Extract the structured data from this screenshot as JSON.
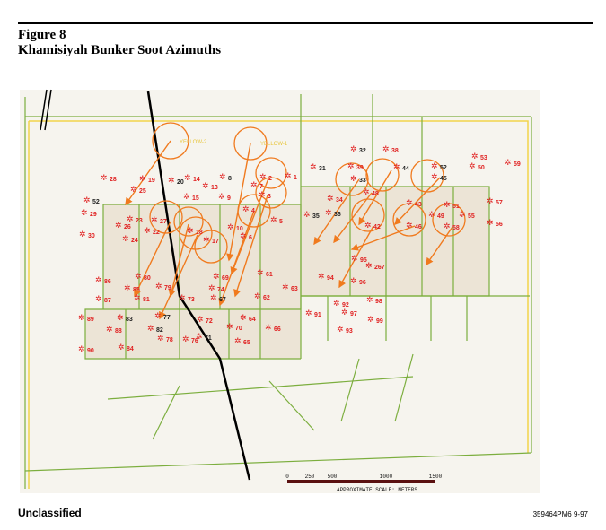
{
  "header": {
    "figure_number": "Figure 8",
    "title": "Khamisiyah Bunker Soot Azimuths"
  },
  "map": {
    "markers": [
      "YELLOW-2",
      "YELLOW-1"
    ],
    "bunker_labels": [
      "1",
      "2",
      "3",
      "4",
      "5",
      "6",
      "7",
      "8",
      "9",
      "10",
      "13",
      "14",
      "15",
      "17",
      "18",
      "19",
      "20",
      "22",
      "23",
      "24",
      "25",
      "26",
      "27",
      "28",
      "29",
      "30",
      "31",
      "32",
      "33",
      "34",
      "35",
      "36",
      "38",
      "39",
      "42",
      "43",
      "44",
      "45",
      "46",
      "48",
      "49",
      "50",
      "51",
      "52",
      "52",
      "53",
      "55",
      "56",
      "57",
      "58",
      "59",
      "61",
      "62",
      "63",
      "64",
      "65",
      "66",
      "67",
      "69",
      "70",
      "71",
      "72",
      "73",
      "74",
      "76",
      "77",
      "78",
      "79",
      "80",
      "81",
      "82",
      "83",
      "84",
      "85",
      "86",
      "87",
      "88",
      "89",
      "90",
      "91",
      "92",
      "93",
      "94",
      "95",
      "96",
      "97",
      "98",
      "99",
      "267"
    ],
    "scale": {
      "ticks": [
        "0",
        "250",
        "500",
        "1000",
        "1500"
      ],
      "label": "APPROXIMATE SCALE:  METERS"
    },
    "colors": {
      "arrows": "#f07a1e",
      "bunkers": "#e02020",
      "grid": "#7cae3e",
      "road": "#000000",
      "border": "#f2d34a"
    }
  },
  "footer": {
    "classification": "Unclassified",
    "doc_id": "359464PM6 9-97"
  }
}
